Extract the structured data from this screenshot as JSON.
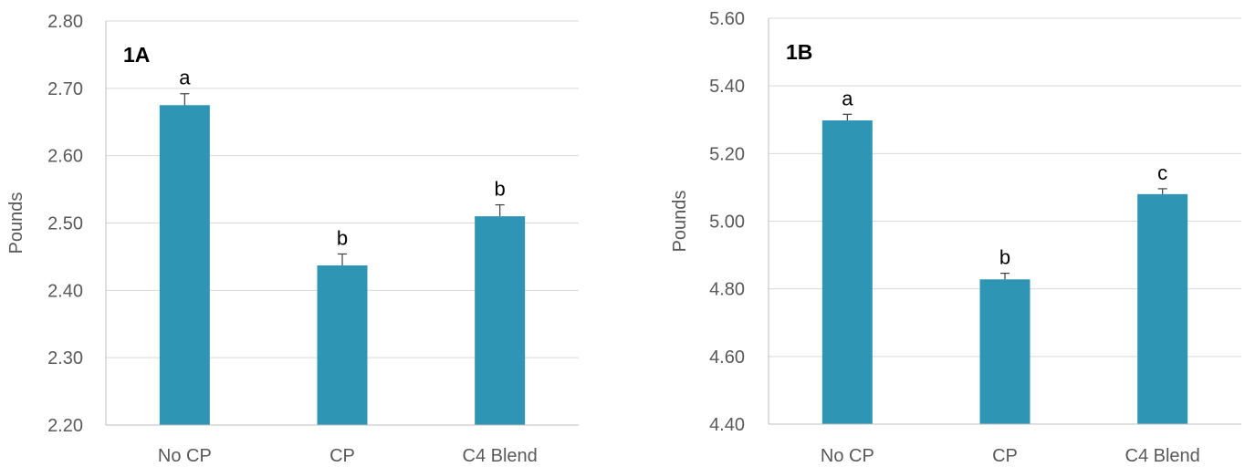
{
  "chart_data": [
    {
      "type": "bar",
      "panel_label": "1A",
      "ylabel": "Pounds",
      "ylim": [
        2.2,
        2.8
      ],
      "y_ticks": [
        "2.20",
        "2.30",
        "2.40",
        "2.50",
        "2.60",
        "2.70",
        "2.80"
      ],
      "grid": true,
      "categories": [
        "No CP",
        "CP",
        "C4 Blend"
      ],
      "values": [
        2.675,
        2.437,
        2.51
      ],
      "error_upper": [
        2.692,
        2.454,
        2.527
      ],
      "significance_letters": [
        "a",
        "b",
        "b"
      ],
      "bar_color": "#2e95b5"
    },
    {
      "type": "bar",
      "panel_label": "1B",
      "ylabel": "Pounds",
      "ylim": [
        4.4,
        5.6
      ],
      "y_ticks": [
        "4.40",
        "4.60",
        "4.80",
        "5.00",
        "5.20",
        "5.40",
        "5.60"
      ],
      "grid": true,
      "categories": [
        "No CP",
        "CP",
        "C4 Blend"
      ],
      "values": [
        5.298,
        4.828,
        5.08
      ],
      "error_upper": [
        5.316,
        4.846,
        5.096
      ],
      "significance_letters": [
        "a",
        "b",
        "c"
      ],
      "bar_color": "#2e95b5"
    }
  ]
}
